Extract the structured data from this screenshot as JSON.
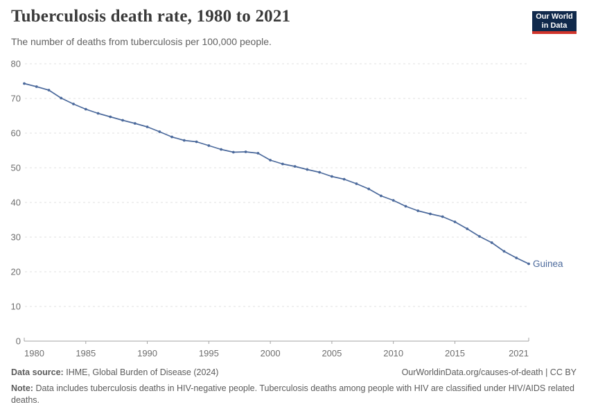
{
  "header": {
    "title": "Tuberculosis death rate, 1980 to 2021",
    "subtitle": "The number of deaths from tuberculosis per 100,000 people.",
    "logo_line1": "Our World",
    "logo_line2": "in Data"
  },
  "colors": {
    "line": "#4c6a9c",
    "grid": "#e2e2e2",
    "axis": "#a3a3a3",
    "tick_label": "#6e6e6e",
    "title_text": "#3a3a3a",
    "muted_text": "#5b5b5b",
    "logo_bg": "#10294b",
    "logo_stripe": "#d1342b"
  },
  "chart_data": {
    "type": "line",
    "title": "Tuberculosis death rate, 1980 to 2021",
    "xlabel": "",
    "ylabel": "",
    "xlim": [
      1980,
      2021
    ],
    "ylim": [
      0,
      80
    ],
    "x_ticks": [
      1980,
      1985,
      1990,
      1995,
      2000,
      2005,
      2010,
      2015,
      2021
    ],
    "y_ticks": [
      0,
      10,
      20,
      30,
      40,
      50,
      60,
      70,
      80
    ],
    "grid": "horizontal-dashed",
    "legend_position": "end-of-line-label",
    "x": [
      1980,
      1981,
      1982,
      1983,
      1984,
      1985,
      1986,
      1987,
      1988,
      1989,
      1990,
      1991,
      1992,
      1993,
      1994,
      1995,
      1996,
      1997,
      1998,
      1999,
      2000,
      2001,
      2002,
      2003,
      2004,
      2005,
      2006,
      2007,
      2008,
      2009,
      2010,
      2011,
      2012,
      2013,
      2014,
      2015,
      2016,
      2017,
      2018,
      2019,
      2020,
      2021
    ],
    "series": [
      {
        "name": "Guinea",
        "color": "#4c6a9c",
        "values": [
          74.3,
          73.4,
          72.4,
          70.1,
          68.4,
          66.9,
          65.7,
          64.7,
          63.7,
          62.8,
          61.8,
          60.4,
          58.9,
          57.9,
          57.5,
          56.4,
          55.3,
          54.5,
          54.6,
          54.2,
          52.2,
          51.1,
          50.4,
          49.5,
          48.7,
          47.5,
          46.7,
          45.4,
          43.9,
          41.9,
          40.6,
          38.9,
          37.6,
          36.7,
          35.9,
          34.4,
          32.4,
          30.2,
          28.4,
          25.9,
          24.0,
          22.3
        ]
      }
    ]
  },
  "footer": {
    "source_label": "Data source:",
    "source_text": "IHME, Global Burden of Disease (2024)",
    "attribution": "OurWorldinData.org/causes-of-death | CC BY",
    "note_label": "Note:",
    "note_text": "Data includes tuberculosis deaths in HIV-negative people. Tuberculosis deaths among people with HIV are classified under HIV/AIDS related deaths."
  }
}
